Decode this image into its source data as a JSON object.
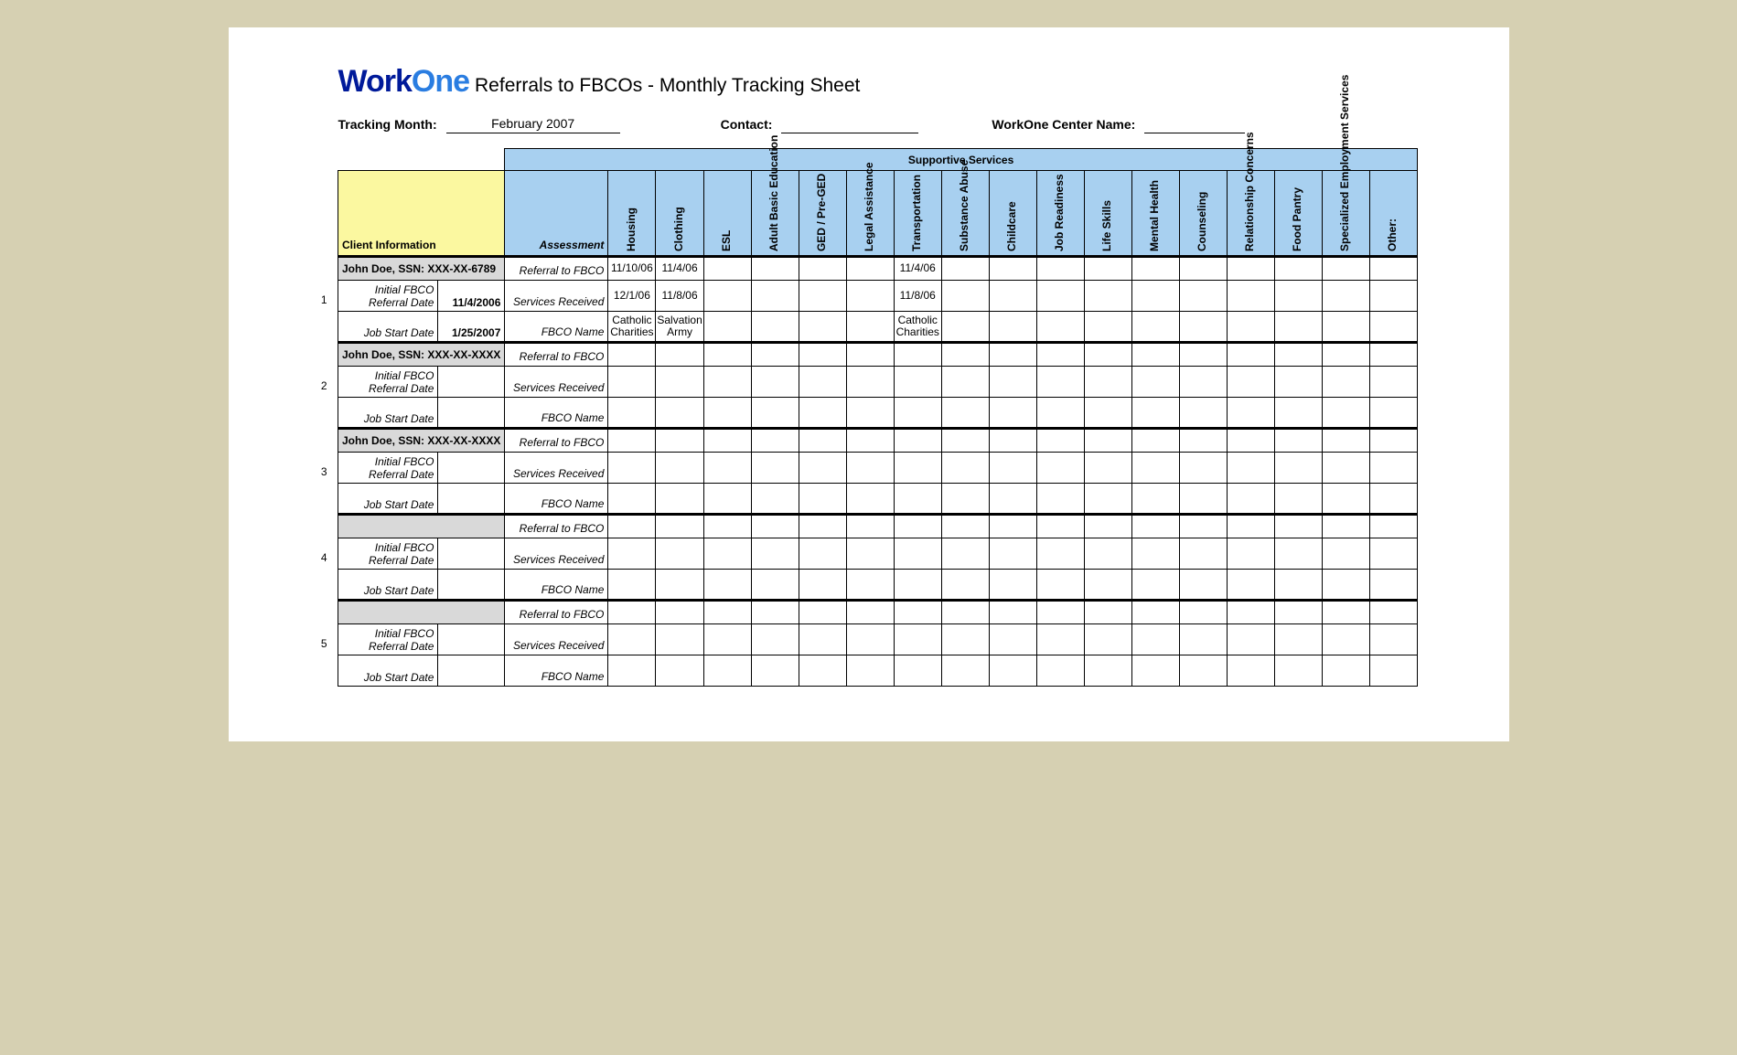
{
  "colors": {
    "page_bg": "#d6d0b2",
    "sheet_bg": "#ffffff",
    "header_blue": "#a8d0f0",
    "client_yellow": "#fbf8a0",
    "client_grey": "#d9d9d9",
    "border": "#000000",
    "logo_work": "#001a9a",
    "logo_one": "#2a7de1"
  },
  "logo": {
    "part1": "Work",
    "part2": "One"
  },
  "title": "Referrals to FBCOs - Monthly Tracking Sheet",
  "meta": {
    "tracking_month_label": "Tracking Month:",
    "tracking_month_value": "February 2007",
    "contact_label": "Contact:",
    "contact_value": "",
    "center_label": "WorkOne Center Name:",
    "center_value": ""
  },
  "headers": {
    "supportive": "Supportive Services",
    "client_info": "Client Information",
    "assessment": "Assessment",
    "services": [
      "Housing",
      "Clothing",
      "ESL",
      "Adult Basic Education",
      "GED / Pre-GED",
      "Legal Assistance",
      "Transportation",
      "Substance Abuse",
      "Childcare",
      "Job Readiness",
      "Life Skills",
      "Mental Health",
      "Counseling",
      "Relationship Concerns",
      "Food Pantry",
      "Specialized Employment Services",
      "Other:"
    ]
  },
  "row_labels": {
    "referral": "Referral to FBCO",
    "services": "Services Received",
    "fbco": "FBCO Name",
    "initial": "Initial FBCO Referral Date",
    "jobstart": "Job Start Date"
  },
  "clients": [
    {
      "num": "1",
      "name": "John Doe, SSN: XXX-XX-6789",
      "initial_date": "11/4/2006",
      "job_start": "1/25/2007",
      "referral": {
        "Housing": "11/10/06",
        "Clothing": "11/4/06",
        "Transportation": "11/4/06"
      },
      "services": {
        "Housing": "12/1/06",
        "Clothing": "11/8/06",
        "Transportation": "11/8/06"
      },
      "fbco": {
        "Housing": "Catholic Charities",
        "Clothing": "Salvation Army",
        "Transportation": "Catholic Charities"
      }
    },
    {
      "num": "2",
      "name": "John Doe, SSN: XXX-XX-XXXX",
      "initial_date": "",
      "job_start": "",
      "referral": {},
      "services": {},
      "fbco": {}
    },
    {
      "num": "3",
      "name": "John Doe, SSN: XXX-XX-XXXX",
      "initial_date": "",
      "job_start": "",
      "referral": {},
      "services": {},
      "fbco": {}
    },
    {
      "num": "4",
      "name": "",
      "initial_date": "",
      "job_start": "",
      "referral": {},
      "services": {},
      "fbco": {}
    },
    {
      "num": "5",
      "name": "",
      "initial_date": "",
      "job_start": "",
      "referral": {},
      "services": {},
      "fbco": {}
    }
  ]
}
